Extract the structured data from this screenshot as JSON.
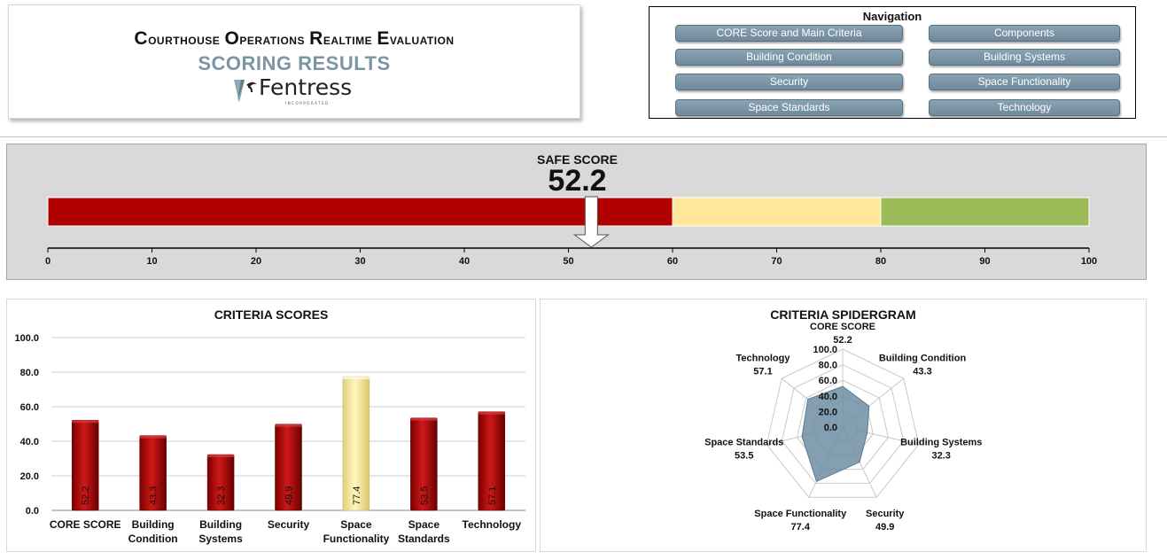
{
  "header": {
    "title_words": [
      {
        "cap": "C",
        "rest": "ourthouse"
      },
      {
        "cap": "O",
        "rest": "perations"
      },
      {
        "cap": "R",
        "rest": "ealtime"
      },
      {
        "cap": "E",
        "rest": "valuation"
      }
    ],
    "subtitle": "SCORING RESULTS",
    "logo_text": "Fentress",
    "logo_sub": "INCORPORATED"
  },
  "navigation": {
    "title": "Navigation",
    "buttons": [
      "CORE Score and Main Criteria",
      "Components",
      "Building Condition",
      "Building Systems",
      "Security",
      "Space Functionality",
      "Space Standards",
      "Technology"
    ]
  },
  "colors": {
    "red": "#b00000",
    "yellow": "#ffe699",
    "green": "#9bbb59",
    "bar_red": "#b30a0a",
    "bar_highlight": "#fff2a8",
    "nav_blue": "#7b95a3",
    "spider_fill": "#6e8ea3"
  },
  "chart_data": [
    {
      "type": "bar",
      "title": "SAFE SCORE",
      "value": 52.2,
      "value_label": "52.2",
      "xlim": [
        0,
        100
      ],
      "ticks": [
        0,
        10,
        20,
        30,
        40,
        50,
        60,
        70,
        80,
        90,
        100
      ],
      "bands": [
        {
          "from": 0,
          "to": 60,
          "color": "#b00000"
        },
        {
          "from": 60,
          "to": 80,
          "color": "#ffe699"
        },
        {
          "from": 80,
          "to": 100,
          "color": "#9bbb59"
        }
      ]
    },
    {
      "type": "bar",
      "title": "CRITERIA SCORES",
      "categories": [
        [
          "CORE SCORE"
        ],
        [
          "Building",
          "Condition"
        ],
        [
          "Building",
          "Systems"
        ],
        [
          "Security"
        ],
        [
          "Space",
          "Functionality"
        ],
        [
          "Space",
          "Standards"
        ],
        [
          "Technology"
        ]
      ],
      "values": [
        52.2,
        43.3,
        32.3,
        49.9,
        77.4,
        53.5,
        57.1
      ],
      "value_labels": [
        "52.2",
        "43.3",
        "32.3",
        "49.9",
        "77.4",
        "53.5",
        "57.1"
      ],
      "highlight_index": 4,
      "ylim": [
        0,
        100
      ],
      "yticks": [
        "0.0",
        "20.0",
        "40.0",
        "60.0",
        "80.0",
        "100.0"
      ],
      "grid": true
    },
    {
      "type": "radar",
      "title": "CRITERIA SPIDERGRAM",
      "axes": [
        "CORE SCORE",
        "Building Condition",
        "Building Systems",
        "Security",
        "Space Functionality",
        "Space Standards",
        "Technology"
      ],
      "values": [
        52.2,
        43.3,
        32.3,
        49.9,
        77.4,
        53.5,
        57.1
      ],
      "value_labels": [
        "52.2",
        "43.3",
        "32.3",
        "49.9",
        "77.4",
        "53.5",
        "57.1"
      ],
      "rlim": [
        0,
        100
      ],
      "rticks": [
        "0.0",
        "20.0",
        "40.0",
        "60.0",
        "80.0",
        "100.0"
      ]
    }
  ]
}
